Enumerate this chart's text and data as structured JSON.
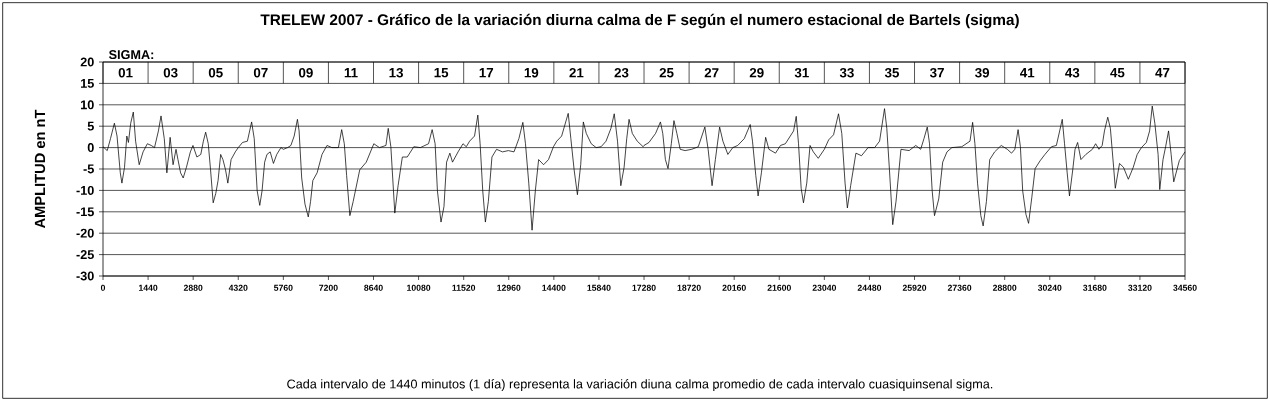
{
  "chart_data": {
    "type": "line",
    "title": "TRELEW 2007 - Gráfico de la variación diurna calma de F según el numero estacional de Bartels (sigma)",
    "ylabel": "AMPLITUD en nT",
    "annotations": [
      "SIGMA:",
      "01",
      "03",
      "05",
      "07",
      "09",
      "11",
      "13",
      "15",
      "17",
      "19",
      "21",
      "23",
      "25",
      "27",
      "29",
      "31",
      "33",
      "35",
      "37",
      "39",
      "41",
      "43",
      "45",
      "47",
      "Cada intervalo de 1440 minutos (1 día)  representa la variación diuna calma promedio de cada intervalo cuasiquinsenal sigma."
    ],
    "xlim": [
      0,
      34560
    ],
    "ylim": [
      -30,
      20
    ],
    "xticks": [
      0,
      1440,
      2880,
      4320,
      5760,
      7200,
      8640,
      10080,
      11520,
      12960,
      14400,
      15840,
      17280,
      18720,
      20160,
      21600,
      23040,
      24480,
      25920,
      27360,
      28800,
      30240,
      31680,
      33120,
      34560
    ],
    "yticks": [
      -30,
      -25,
      -20,
      -15,
      -10,
      -5,
      0,
      5,
      10,
      15,
      20
    ],
    "grid": "y",
    "line_style": "solid",
    "x": [
      0,
      135,
      239,
      364,
      448,
      552,
      604,
      687,
      760,
      812,
      885,
      968,
      1041,
      1156,
      1280,
      1416,
      1541,
      1645,
      1770,
      1853,
      1957,
      2040,
      2144,
      2238,
      2332,
      2394,
      2478,
      2561,
      2665,
      2790,
      2873,
      2998,
      3123,
      3206,
      3279,
      3362,
      3435,
      3519,
      3602,
      3675,
      3758,
      3831,
      3914,
      3987,
      4091,
      4226,
      4320,
      4456,
      4612,
      4747,
      4830,
      4924,
      5007,
      5080,
      5163,
      5236,
      5340,
      5444,
      5549,
      5684,
      5760,
      5896,
      6001,
      6106,
      6210,
      6263,
      6346,
      6451,
      6556,
      6629,
      6702,
      6838,
      6995,
      7153,
      7310,
      7519,
      7624,
      7707,
      7781,
      7885,
      7990,
      8200,
      8409,
      8650,
      8828,
      9037,
      9110,
      9194,
      9278,
      9320,
      9425,
      9561,
      9718,
      9927,
      10136,
      10398,
      10513,
      10608,
      10681,
      10796,
      10890,
      10974,
      11079,
      11163,
      11341,
      11498,
      11604,
      11709,
      11867,
      11972,
      12045,
      12129,
      12213,
      12308,
      12423,
      12570,
      12759,
      12948,
      13127,
      13284,
      13410,
      13494,
      13599,
      13704,
      13809,
      13914,
      14072,
      14229,
      14387,
      14492,
      14649,
      14859,
      14943,
      15048,
      15153,
      15258,
      15342,
      15437,
      15594,
      15752,
      15909,
      16067,
      16224,
      16329,
      16434,
      16539,
      16644,
      16728,
      16802,
      16907,
      17064,
      17253,
      17280,
      17438,
      17648,
      17805,
      17879,
      17963,
      18047,
      18152,
      18236,
      18330,
      18435,
      18593,
      18803,
      19013,
      19223,
      19328,
      19454,
      19559,
      19695,
      19800,
      19958,
      20115,
      20273,
      20483,
      20672,
      20745,
      20850,
      20924,
      21029,
      21165,
      21270,
      21480,
      21638,
      21795,
      22058,
      22142,
      22215,
      22299,
      22373,
      22478,
      22583,
      22688,
      22845,
      23040,
      23177,
      23334,
      23492,
      23597,
      23702,
      23775,
      23880,
      24048,
      24227,
      24437,
      24647,
      24804,
      24962,
      25035,
      25119,
      25224,
      25329,
      25487,
      25749,
      25959,
      26117,
      26222,
      26327,
      26400,
      26484,
      26558,
      26694,
      26820,
      26957,
      27114,
      27429,
      27692,
      27776,
      27849,
      27933,
      28038,
      28112,
      28217,
      28322,
      28479,
      28689,
      28884,
      29019,
      29124,
      29228,
      29302,
      29375,
      29479,
      29563,
      29667,
      29772,
      29929,
      30085,
      30294,
      30451,
      30556,
      30639,
      30712,
      30796,
      30869,
      30974,
      31047,
      31130,
      31235,
      31392,
      31601,
      31705,
      31810,
      31914,
      31987,
      32092,
      32176,
      32280,
      32333,
      32468,
      32594,
      32750,
      32907,
      33032,
      33168,
      33325,
      33429,
      33513,
      33596,
      33700,
      33753,
      33857,
      33940,
      34034,
      34117,
      34200,
      34380,
      34560
    ],
    "series": [
      {
        "color": "#000000",
        "values": [
          0.2,
          -0.7,
          2.1,
          5.7,
          2.7,
          -5.9,
          -8.3,
          -4.6,
          2.7,
          1.2,
          5.7,
          8.3,
          1.5,
          -4.0,
          -1.0,
          0.9,
          0.5,
          0,
          3.9,
          7.4,
          2.1,
          -5.9,
          2.4,
          -4.0,
          -0.4,
          -2.8,
          -5.9,
          -7.1,
          -4.6,
          -1.0,
          0.5,
          -2.2,
          -1.6,
          1.5,
          3.6,
          0.9,
          -5.2,
          -12.9,
          -10.7,
          -7.7,
          -1.6,
          -2.8,
          -5.2,
          -8.3,
          -2.8,
          -1.0,
          0,
          1.2,
          1.5,
          6.0,
          2.1,
          -10.1,
          -13.5,
          -10.1,
          -3.4,
          -1.6,
          -1.0,
          -3.7,
          -1.6,
          0,
          -0.4,
          0,
          0.5,
          2.7,
          6.6,
          3.9,
          -7.1,
          -13.2,
          -16.2,
          -12.6,
          -7.7,
          -5.9,
          -1.6,
          0.5,
          0,
          0,
          4.2,
          0.9,
          -6.5,
          -15.9,
          -12.6,
          -5.2,
          -3.4,
          0.9,
          0,
          0.5,
          4.5,
          0.2,
          -10.1,
          -15.3,
          -8.9,
          -2.2,
          -2.2,
          0.2,
          0,
          0.9,
          4.2,
          0.9,
          -10.1,
          -17.4,
          -13.8,
          -3.4,
          -1.3,
          -3.4,
          -1.0,
          0.9,
          0.2,
          1.5,
          2.7,
          7.6,
          0.9,
          -10.1,
          -17.4,
          -12.6,
          -2.2,
          -0.4,
          -1.0,
          -0.7,
          -1.0,
          2.1,
          5.9,
          0.9,
          -8.3,
          -19.3,
          -10.1,
          -2.8,
          -4.0,
          -2.8,
          0.2,
          1.5,
          2.7,
          8.0,
          2.1,
          -5.2,
          -11.0,
          -4.0,
          6.0,
          3.3,
          0.9,
          0,
          0.2,
          1.5,
          4.5,
          7.9,
          1.5,
          -8.9,
          -4.6,
          2.1,
          6.6,
          3.3,
          1.5,
          0.2,
          0.5,
          1.2,
          3.3,
          6.0,
          3.3,
          -2.8,
          -4.9,
          0.9,
          6.3,
          3.3,
          -0.4,
          -0.7,
          -0.4,
          0.2,
          4.8,
          -0.4,
          -8.9,
          -2.8,
          4.8,
          1.5,
          -1.6,
          0,
          0.5,
          2.1,
          5.4,
          1.5,
          -6.5,
          -11.3,
          -5.9,
          2.4,
          -0.4,
          -1.3,
          0.5,
          0.9,
          3.9,
          7.3,
          0.9,
          -9.5,
          -12.9,
          -8.3,
          0.5,
          -1.0,
          -2.5,
          -0.4,
          1.8,
          3.0,
          7.9,
          3.3,
          -8.3,
          -14.1,
          -8.9,
          -1.3,
          -1.9,
          0,
          0,
          1.5,
          9.1,
          4.5,
          -5.2,
          -18.0,
          -12.6,
          -0.4,
          -0.7,
          0.5,
          -0.4,
          2.1,
          4.8,
          0.9,
          -10.1,
          -15.9,
          -12.0,
          -3.4,
          -1.0,
          0,
          0.2,
          1.5,
          5.9,
          0.9,
          -8.3,
          -15.9,
          -18.3,
          -12.6,
          -2.8,
          -1.0,
          0.5,
          -0.4,
          -1.3,
          -0.4,
          4.2,
          0.2,
          -10.1,
          -15.6,
          -17.7,
          -11.6,
          -4.9,
          -3.1,
          -1.6,
          0.2,
          0.5,
          3.9,
          6.6,
          0.9,
          -5.9,
          -11.3,
          -5.2,
          -0.4,
          1.2,
          -2.8,
          -1.6,
          -0.4,
          0.9,
          -0.4,
          0.5,
          3.9,
          7.1,
          4.5,
          -4.6,
          -9.5,
          -3.7,
          -4.6,
          -7.4,
          -4.6,
          -1.6,
          0,
          1.2,
          3.9,
          9.7,
          5.7,
          -1.6,
          -9.8,
          -2.8,
          0.2,
          3.9,
          -1.6,
          -8.0,
          -3.0,
          -1.0
        ]
      }
    ]
  }
}
